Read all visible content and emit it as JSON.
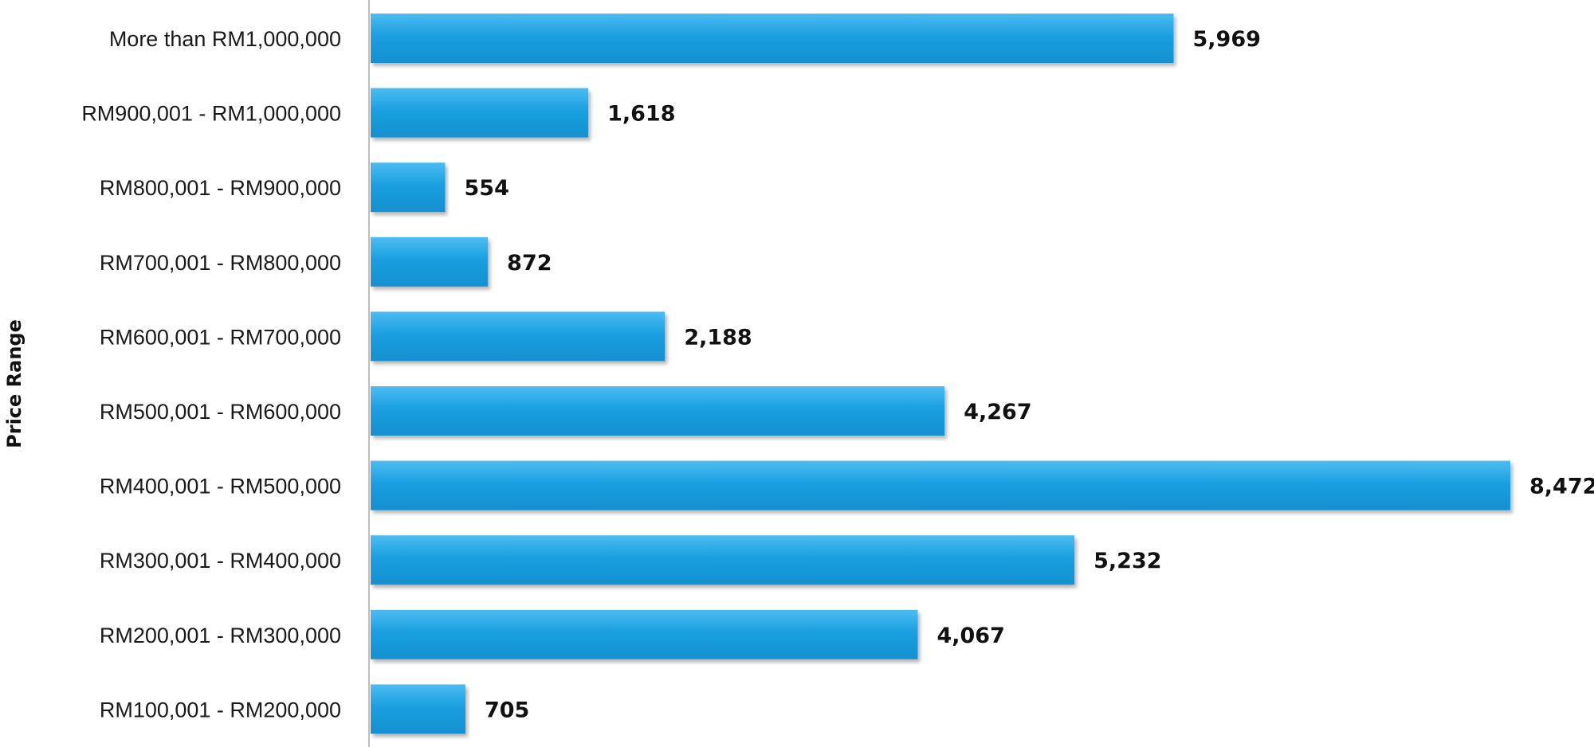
{
  "chart_data": {
    "type": "bar",
    "orientation": "horizontal",
    "ylabel": "Price Range",
    "xlabel": "",
    "categories": [
      "More than RM1,000,000",
      "RM900,001 - RM1,000,000",
      "RM800,001 - RM900,000",
      "RM700,001 - RM800,000",
      "RM600,001 - RM700,000",
      "RM500,001 - RM600,000",
      "RM400,001 - RM500,000",
      "RM300,001 - RM400,000",
      "RM200,001 - RM300,000",
      "RM100,001 - RM200,000"
    ],
    "values": [
      5969,
      1618,
      554,
      872,
      2188,
      4267,
      8472,
      5232,
      4067,
      705
    ],
    "value_labels": [
      "5,969",
      "1,618",
      "554",
      "872",
      "2,188",
      "4,267",
      "8,472",
      "5,232",
      "4,067",
      "705"
    ],
    "xlim": [
      0,
      8472
    ],
    "grid": false,
    "legend": "none",
    "colors": {
      "bar": "#1a9fe0",
      "bar_highlight": "#4dbcf2",
      "bar_shadow": "#0d6fa6",
      "axis": "#bdbdbd"
    }
  }
}
